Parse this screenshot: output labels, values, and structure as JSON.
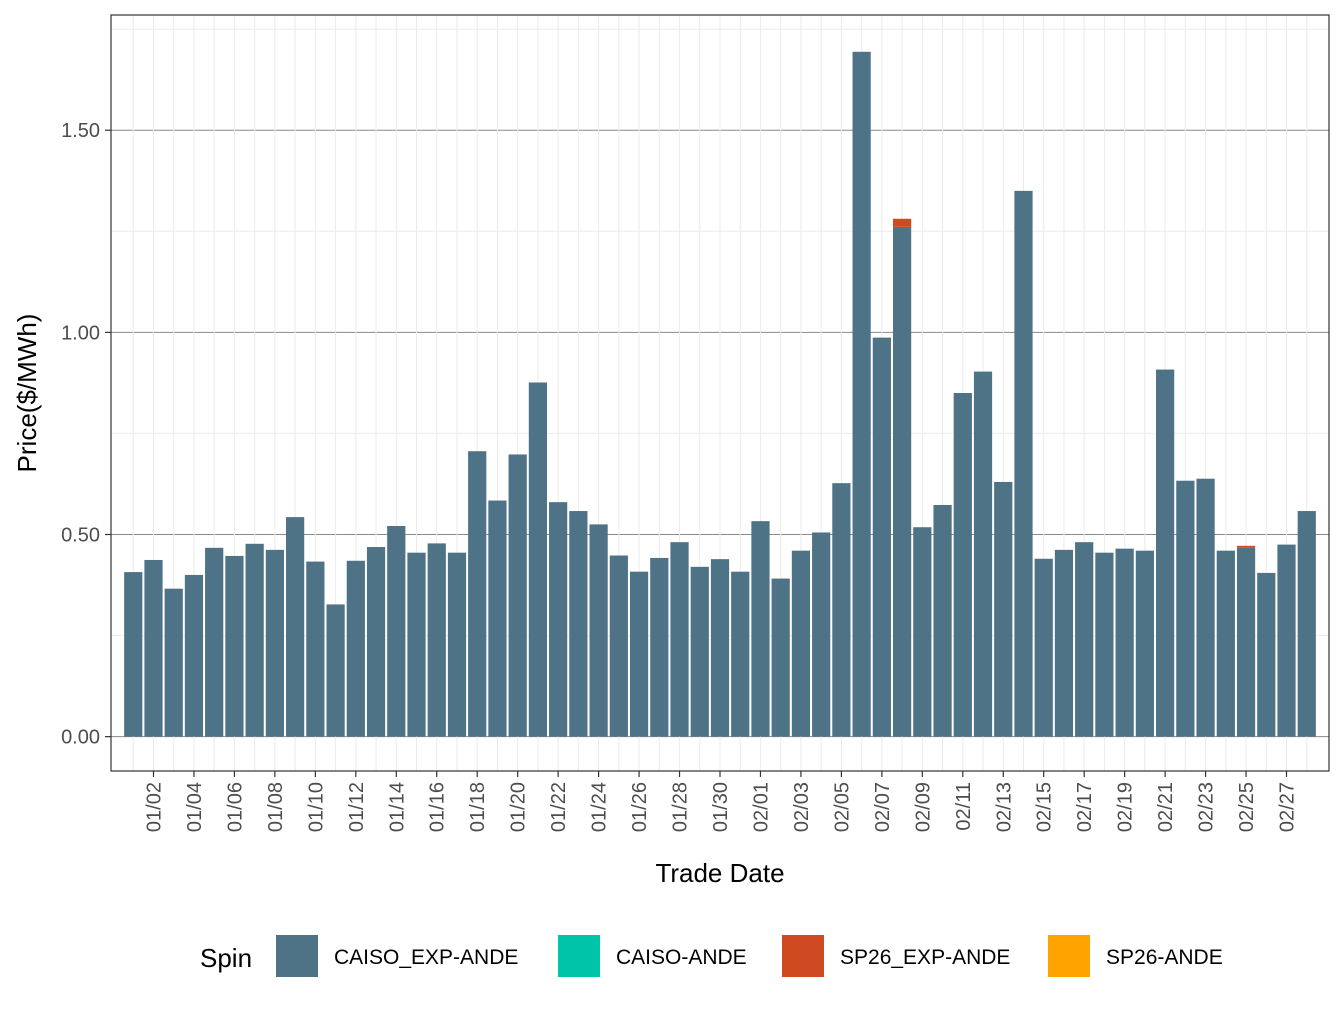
{
  "chart_data": {
    "type": "bar",
    "stacked": true,
    "xlabel": "Trade Date",
    "ylabel": "Price($/MWh)",
    "ylim": [
      -0.085,
      1.785
    ],
    "yticks": [
      0.0,
      0.5,
      1.0,
      1.5
    ],
    "ytick_labels": [
      "0.00",
      "0.50",
      "1.00",
      "1.50"
    ],
    "grid": true,
    "legend": {
      "title": "Spin",
      "position": "bottom"
    },
    "categories": [
      "01/01",
      "01/02",
      "01/03",
      "01/04",
      "01/05",
      "01/06",
      "01/07",
      "01/08",
      "01/09",
      "01/10",
      "01/11",
      "01/12",
      "01/13",
      "01/14",
      "01/15",
      "01/16",
      "01/17",
      "01/18",
      "01/19",
      "01/20",
      "01/21",
      "01/22",
      "01/23",
      "01/24",
      "01/25",
      "01/26",
      "01/27",
      "01/28",
      "01/29",
      "01/30",
      "01/31",
      "02/01",
      "02/02",
      "02/03",
      "02/04",
      "02/05",
      "02/06",
      "02/07",
      "02/08",
      "02/09",
      "02/10",
      "02/11",
      "02/12",
      "02/13",
      "02/14",
      "02/15",
      "02/16",
      "02/17",
      "02/18",
      "02/19",
      "02/20",
      "02/21",
      "02/22",
      "02/23",
      "02/24",
      "02/25",
      "02/26",
      "02/27",
      "02/28"
    ],
    "tick_labels": [
      "01/02",
      "01/04",
      "01/06",
      "01/08",
      "01/10",
      "01/12",
      "01/14",
      "01/16",
      "01/18",
      "01/20",
      "01/22",
      "01/24",
      "01/26",
      "01/28",
      "01/30",
      "02/01",
      "02/03",
      "02/05",
      "02/07",
      "02/09",
      "02/11",
      "02/13",
      "02/15",
      "02/17",
      "02/19",
      "02/21",
      "02/23",
      "02/25",
      "02/27"
    ],
    "series": [
      {
        "name": "CAISO_EXP-ANDE",
        "color": "#4e7286",
        "values": [
          0.407,
          0.437,
          0.366,
          0.4,
          0.467,
          0.447,
          0.477,
          0.462,
          0.543,
          0.433,
          0.327,
          0.435,
          0.469,
          0.521,
          0.455,
          0.478,
          0.455,
          0.706,
          0.584,
          0.698,
          0.876,
          0.58,
          0.558,
          0.525,
          0.448,
          0.408,
          0.442,
          0.481,
          0.42,
          0.439,
          0.408,
          0.533,
          0.391,
          0.46,
          0.505,
          0.627,
          1.694,
          0.987,
          1.261,
          0.518,
          0.573,
          0.85,
          0.903,
          0.63,
          1.35,
          0.44,
          0.462,
          0.481,
          0.455,
          0.465,
          0.46,
          0.908,
          0.633,
          0.638,
          0.46,
          0.467,
          0.405,
          0.475,
          0.558
        ]
      },
      {
        "name": "CAISO-ANDE",
        "color": "#00c4aa",
        "values": [
          0,
          0,
          0,
          0,
          0,
          0,
          0,
          0,
          0,
          0,
          0,
          0,
          0,
          0,
          0,
          0,
          0,
          0,
          0,
          0,
          0,
          0,
          0,
          0,
          0,
          0,
          0,
          0,
          0,
          0,
          0,
          0,
          0,
          0,
          0,
          0,
          0,
          0,
          0,
          0,
          0,
          0,
          0,
          0,
          0,
          0,
          0,
          0,
          0,
          0,
          0,
          0,
          0,
          0,
          0,
          0,
          0,
          0,
          0
        ]
      },
      {
        "name": "SP26_EXP-ANDE",
        "color": "#d04a21",
        "values": [
          0,
          0,
          0,
          0,
          0,
          0,
          0,
          0,
          0,
          0,
          0,
          0,
          0,
          0,
          0,
          0,
          0,
          0,
          0,
          0,
          0,
          0,
          0,
          0,
          0,
          0,
          0,
          0,
          0,
          0,
          0,
          0,
          0,
          0,
          0,
          0,
          0,
          0,
          0.02,
          0,
          0,
          0,
          0,
          0,
          0,
          0,
          0,
          0,
          0,
          0,
          0,
          0,
          0,
          0,
          0,
          0.005,
          0,
          0,
          0
        ]
      },
      {
        "name": "SP26-ANDE",
        "color": "#ffa300",
        "values": [
          0,
          0,
          0,
          0,
          0,
          0,
          0,
          0,
          0,
          0,
          0,
          0,
          0,
          0,
          0,
          0,
          0,
          0,
          0,
          0,
          0,
          0,
          0,
          0,
          0,
          0,
          0,
          0,
          0,
          0,
          0,
          0,
          0,
          0,
          0,
          0,
          0,
          0,
          0,
          0,
          0,
          0,
          0,
          0,
          0,
          0,
          0,
          0,
          0,
          0,
          0,
          0,
          0,
          0,
          0,
          0,
          0,
          0,
          0
        ]
      }
    ]
  }
}
